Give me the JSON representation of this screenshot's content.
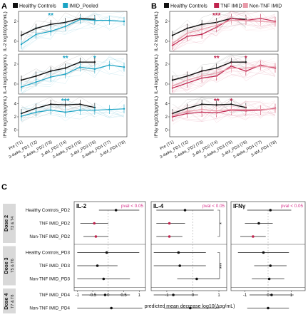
{
  "panel_letters": {
    "a": "A",
    "b": "B",
    "c": "C"
  },
  "chart_data": [
    {
      "id": "A",
      "type": "line",
      "legend": [
        {
          "name": "Healthy Controls",
          "color": "#111111"
        },
        {
          "name": "IMID_Pooled",
          "color": "#1aa3c4"
        }
      ],
      "x": [
        "Pre (T1)",
        "2-4wks_PD1 (T2)",
        "2-4wks_PD2 (T3)",
        "3-4M_PD2 (T4)",
        "2-4wks_PD3 (T5)",
        "3-4M_PD3 (T6)",
        "2-4wks_PD4 (T7)",
        "3-4M_PD4 (T8)"
      ],
      "subplots": [
        {
          "ylabel": "IL-2 log10(Δpg/mL)",
          "ylim": [
            -1,
            3
          ],
          "yticks": [
            0,
            2
          ],
          "series": [
            {
              "name": "Healthy Controls",
              "values": [
                0.6,
                1.3,
                1.7,
                1.9,
                2.3,
                2.2,
                null,
                null
              ]
            },
            {
              "name": "IMID_Pooled",
              "values": [
                -0.3,
                0.7,
                1.0,
                1.5,
                2.2,
                2.1,
                2.1,
                2.0
              ]
            }
          ],
          "annotations": [
            {
              "text": "**",
              "x_index": 2,
              "color": "#1aa3c4"
            }
          ]
        },
        {
          "ylabel": "IL-4 log10(Δpg/mL)",
          "ylim": [
            -1,
            3
          ],
          "yticks": [
            0,
            2
          ],
          "series": [
            {
              "name": "Healthy Controls",
              "values": [
                0.4,
                0.8,
                1.3,
                1.6,
                2.2,
                2.2,
                null,
                null
              ]
            },
            {
              "name": "IMID_Pooled",
              "values": [
                -0.3,
                0.2,
                0.7,
                1.0,
                1.7,
                1.5,
                1.9,
                1.7
              ]
            }
          ],
          "annotations": [
            {
              "text": "**",
              "x_index": 3,
              "color": "#1aa3c4"
            },
            {
              "text": "*",
              "x_index": 5,
              "color": "#1aa3c4"
            }
          ]
        },
        {
          "ylabel": "IFNγ log10(Δpg/mL)",
          "ylim": [
            -1,
            5
          ],
          "yticks": [
            0,
            2,
            4
          ],
          "series": [
            {
              "name": "Healthy Controls",
              "values": [
                2.5,
                3.3,
                3.9,
                3.8,
                3.9,
                3.4,
                null,
                null
              ]
            },
            {
              "name": "IMID_Pooled",
              "values": [
                2.1,
                2.7,
                3.0,
                2.7,
                3.0,
                3.0,
                3.1,
                3.2
              ]
            }
          ],
          "annotations": [
            {
              "text": "***",
              "x_index": 3,
              "color": "#1aa3c4"
            }
          ]
        }
      ]
    },
    {
      "id": "B",
      "type": "line",
      "legend": [
        {
          "name": "Healthy Controls",
          "color": "#111111"
        },
        {
          "name": "TNF IMID",
          "color": "#c0234d"
        },
        {
          "name": "Non-TNF IMID",
          "color": "#e89aa9"
        }
      ],
      "x": [
        "Pre (T1)",
        "2-4wks_PD1 (T2)",
        "2-4wks_PD2 (T3)",
        "3-4M_PD2 (T4)",
        "2-4wks_PD3 (T5)",
        "3-4M_PD3 (T6)",
        "2-4wks_PD4 (T7)",
        "3-4M_PD4 (T8)"
      ],
      "subplots": [
        {
          "ylabel": "IL-2 log10(Δpg/mL)",
          "ylim": [
            -1,
            3
          ],
          "yticks": [
            0,
            2
          ],
          "series": [
            {
              "name": "Healthy Controls",
              "values": [
                0.6,
                1.3,
                1.7,
                1.9,
                2.3,
                2.2,
                null,
                null
              ]
            },
            {
              "name": "TNF IMID",
              "values": [
                -0.4,
                0.5,
                0.7,
                1.4,
                2.3,
                2.1,
                2.3,
                2.0
              ]
            },
            {
              "name": "Non-TNF IMID",
              "values": [
                -0.2,
                0.8,
                1.2,
                1.6,
                2.1,
                2.1,
                2.0,
                1.9
              ]
            }
          ],
          "annotations": [
            {
              "text": "***",
              "x_index": 3,
              "color": "#c0234d"
            }
          ]
        },
        {
          "ylabel": "IL-4 log10(Δpg/mL)",
          "ylim": [
            -1,
            3
          ],
          "yticks": [
            0,
            2
          ],
          "series": [
            {
              "name": "Healthy Controls",
              "values": [
                0.4,
                0.8,
                1.3,
                1.6,
                2.2,
                2.2,
                null,
                null
              ]
            },
            {
              "name": "TNF IMID",
              "values": [
                -0.4,
                0.1,
                0.6,
                0.8,
                1.8,
                1.3,
                1.9,
                1.6
              ]
            },
            {
              "name": "Non-TNF IMID",
              "values": [
                -0.2,
                0.4,
                0.8,
                1.1,
                1.6,
                1.6,
                1.8,
                1.7
              ]
            }
          ],
          "annotations": [
            {
              "text": "**",
              "x_index": 3,
              "color": "#c0234d"
            },
            {
              "text": "*",
              "x_index": 5,
              "color": "#c0234d"
            }
          ]
        },
        {
          "ylabel": "IFNγ log10(Δpg/mL)",
          "ylim": [
            -1,
            5
          ],
          "yticks": [
            0,
            2,
            4
          ],
          "series": [
            {
              "name": "Healthy Controls",
              "values": [
                2.5,
                3.3,
                3.9,
                3.8,
                3.9,
                3.4,
                null,
                null
              ]
            },
            {
              "name": "TNF IMID",
              "values": [
                2.0,
                2.5,
                2.7,
                2.6,
                3.0,
                2.9,
                3.0,
                3.3
              ]
            },
            {
              "name": "Non-TNF IMID",
              "values": [
                2.2,
                2.8,
                3.1,
                2.9,
                3.1,
                3.1,
                3.1,
                3.2
              ]
            }
          ],
          "annotations": [
            {
              "text": "**",
              "x_index": 3,
              "color": "#c0234d"
            },
            {
              "text": "*",
              "x_index": 4,
              "color": "#c0234d"
            }
          ]
        }
      ]
    },
    {
      "id": "C",
      "type": "scatter",
      "xlabel": "predicted mean decrease log10(Δpg/mL)",
      "groups": [
        {
          "label": "Dose 2",
          "sub": "T3 & T4",
          "rows": [
            0,
            1,
            2
          ]
        },
        {
          "label": "Dose 3",
          "sub": "T5 & T6",
          "rows": [
            3,
            4,
            5
          ]
        },
        {
          "label": "Dose 4",
          "sub": "T7 & T8",
          "rows": [
            6,
            7
          ]
        }
      ],
      "rows": [
        "Healthy Controls_PD2",
        "TNF IMID_PD2",
        "Non-TNF IMID_PD2",
        "Healthy Controls_PD3",
        "TNF IMID_PD3",
        "Non-TNF IMID_PD3",
        "TNF IMID_PD4",
        "Non-TNF IMID_PD4"
      ],
      "pval_label": "pval < 0.05",
      "significance": [
        {
          "panel": 1,
          "rows": [
            0,
            2
          ],
          "text": "*"
        },
        {
          "panel": 1,
          "rows": [
            3,
            5
          ],
          "text": "***"
        }
      ],
      "forest_panels": [
        {
          "title": "IL-2",
          "xlim": [
            -1.1,
            1.2
          ],
          "xticks": [
            -1,
            -0.5,
            0,
            0.5,
            1
          ],
          "points": [
            {
              "est": 0.25,
              "lo": -0.3,
              "hi": 1.0,
              "sig": false
            },
            {
              "est": -0.45,
              "lo": -0.9,
              "hi": 0.0,
              "sig": true
            },
            {
              "est": -0.4,
              "lo": -0.8,
              "hi": 0.0,
              "sig": true
            },
            {
              "est": -0.05,
              "lo": -1.0,
              "hi": 1.0,
              "sig": false
            },
            {
              "est": -0.35,
              "lo": -1.0,
              "hi": 0.3,
              "sig": false
            },
            {
              "est": -0.15,
              "lo": -1.0,
              "hi": 0.7,
              "sig": false
            },
            {
              "est": -0.1,
              "lo": -0.85,
              "hi": 0.7,
              "sig": false
            },
            {
              "est": 0.1,
              "lo": -1.0,
              "hi": 1.1,
              "sig": false
            }
          ]
        },
        {
          "title": "IL-4",
          "xlim": [
            -1.6,
            1.3
          ],
          "xticks": [
            -1,
            0,
            1
          ],
          "points": [
            {
              "est": -0.3,
              "lo": -1.4,
              "hi": 0.8,
              "sig": false
            },
            {
              "est": -0.9,
              "lo": -1.4,
              "hi": -0.3,
              "sig": true
            },
            {
              "est": -0.9,
              "lo": -1.4,
              "hi": -0.4,
              "sig": true
            },
            {
              "est": -0.55,
              "lo": -1.5,
              "hi": 0.5,
              "sig": false
            },
            {
              "est": -0.5,
              "lo": -1.5,
              "hi": 0.5,
              "sig": false
            },
            {
              "est": 0.15,
              "lo": -0.6,
              "hi": 1.0,
              "sig": false
            },
            {
              "est": -0.75,
              "lo": -1.5,
              "hi": 0.2,
              "sig": false
            },
            {
              "est": -0.1,
              "lo": -1.1,
              "hi": 1.0,
              "sig": false
            }
          ]
        },
        {
          "title": "IFNγ",
          "xlim": [
            -1.6,
            1.6
          ],
          "xticks": [
            -1,
            0,
            1
          ],
          "points": [
            {
              "est": 0.1,
              "lo": -0.9,
              "hi": 1.0,
              "sig": false
            },
            {
              "est": -0.4,
              "lo": -1.0,
              "hi": 0.2,
              "sig": false
            },
            {
              "est": -0.65,
              "lo": -1.2,
              "hi": -0.1,
              "sig": true
            },
            {
              "est": -0.2,
              "lo": -1.3,
              "hi": 0.9,
              "sig": false
            },
            {
              "est": 0.1,
              "lo": -0.6,
              "hi": 0.8,
              "sig": false
            },
            {
              "est": 0.05,
              "lo": -0.7,
              "hi": 0.7,
              "sig": false
            },
            {
              "est": 0.15,
              "lo": -0.8,
              "hi": 1.1,
              "sig": false
            },
            {
              "est": 0.0,
              "lo": -0.9,
              "hi": 0.9,
              "sig": false
            }
          ]
        }
      ]
    }
  ]
}
